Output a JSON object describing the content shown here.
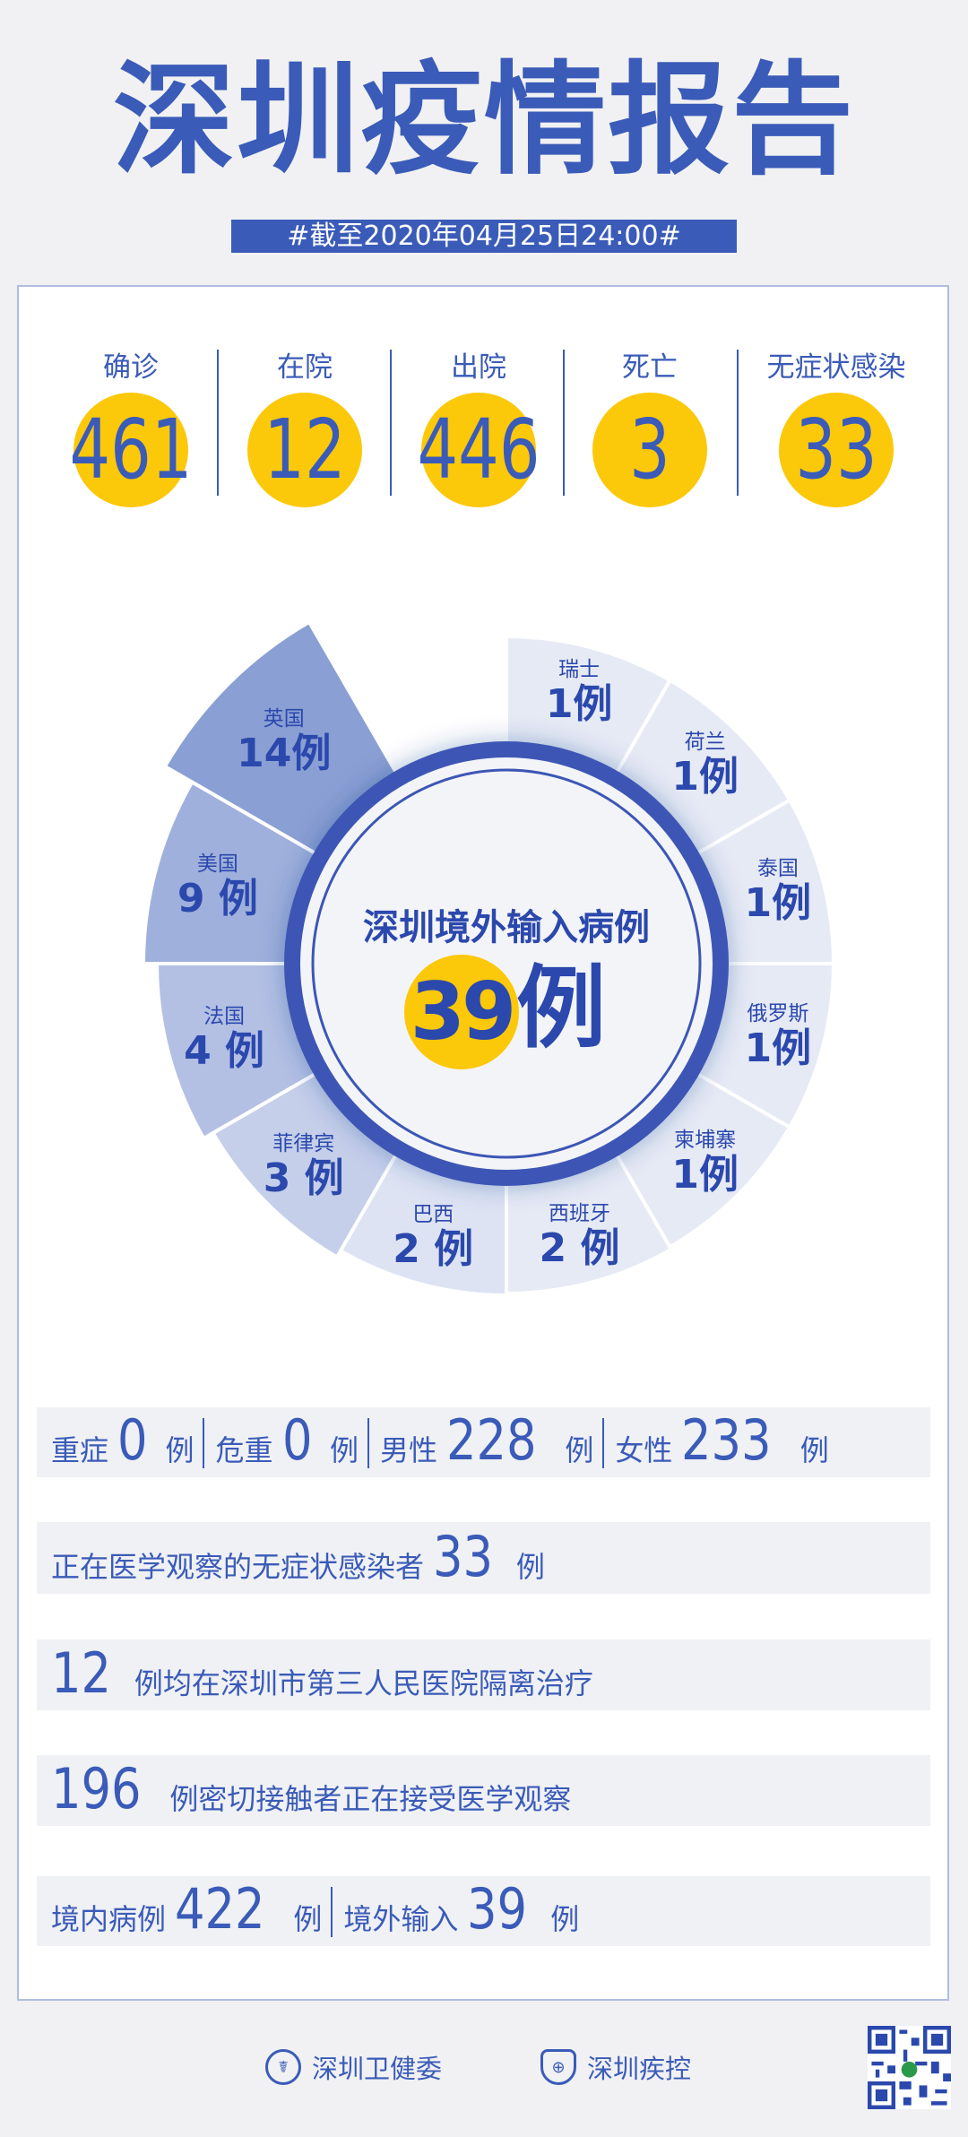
{
  "header": {
    "title": "深圳疫情报告",
    "date_banner": "#截至2020年04月25日24:00#"
  },
  "summary": [
    {
      "label": "确诊",
      "value": "461"
    },
    {
      "label": "在院",
      "value": "12"
    },
    {
      "label": "出院",
      "value": "446"
    },
    {
      "label": "死亡",
      "value": "3"
    },
    {
      "label": "无症状感染",
      "value": "33"
    }
  ],
  "colors": {
    "primary": "#3a5bb8",
    "accent_yellow": "#fcc80a",
    "background": "#f1f1f3"
  },
  "chart_data": {
    "type": "pie",
    "title": "深圳境外输入病例",
    "total": "39",
    "total_unit": "例",
    "categories": [
      "英国",
      "美国",
      "法国",
      "菲律宾",
      "巴西",
      "西班牙",
      "柬埔寨",
      "俄罗斯",
      "泰国",
      "荷兰",
      "瑞士"
    ],
    "values": [
      14,
      9,
      4,
      3,
      2,
      2,
      1,
      1,
      1,
      1,
      1
    ],
    "labels": [
      "14例",
      "9 例",
      "4 例",
      "3 例",
      "2 例",
      "2 例",
      "1例",
      "1例",
      "1例",
      "1例",
      "1例"
    ]
  },
  "details": {
    "row1": [
      {
        "label": "重症",
        "value": "0",
        "unit": "例"
      },
      {
        "label": "危重",
        "value": "0",
        "unit": "例"
      },
      {
        "label": "男性",
        "value": "228",
        "unit": "例"
      },
      {
        "label": "女性",
        "value": "233",
        "unit": "例"
      }
    ],
    "row2": {
      "label": "正在医学观察的无症状感染者",
      "value": "33",
      "unit": "例"
    },
    "row3": {
      "value": "12",
      "text": "例均在深圳市第三人民医院隔离治疗"
    },
    "row4": {
      "value": "196",
      "text": "例密切接触者正在接受医学观察"
    },
    "row5": [
      {
        "label": "境内病例",
        "value": "422",
        "unit": "例"
      },
      {
        "label": "境外输入",
        "value": "39",
        "unit": "例"
      }
    ]
  },
  "footer": {
    "org1": "深圳卫健委",
    "org2": "深圳疾控"
  }
}
